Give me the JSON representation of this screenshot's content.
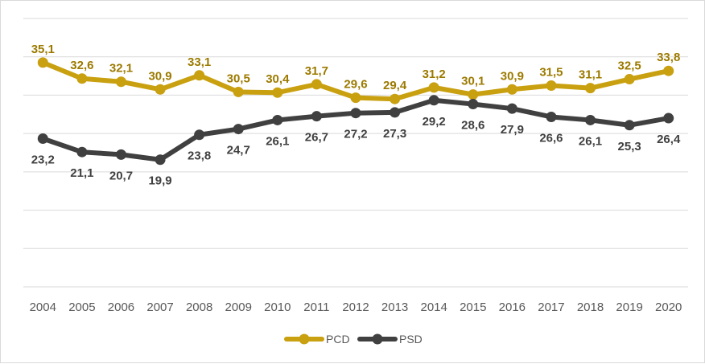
{
  "chart_data": {
    "type": "line",
    "title": "",
    "xlabel": "",
    "ylabel": "",
    "categories": [
      "2004",
      "2005",
      "2006",
      "2007",
      "2008",
      "2009",
      "2010",
      "2011",
      "2012",
      "2013",
      "2014",
      "2015",
      "2016",
      "2017",
      "2018",
      "2019",
      "2020"
    ],
    "ylim": [
      0,
      42
    ],
    "grid": true,
    "legend_position": "bottom",
    "series": [
      {
        "name": "PCD",
        "color": "#C9A00F",
        "label_color": "#9C7A00",
        "values": [
          35.1,
          32.6,
          32.1,
          30.9,
          33.1,
          30.5,
          30.4,
          31.7,
          29.6,
          29.4,
          31.2,
          30.1,
          30.9,
          31.5,
          31.1,
          32.5,
          33.8
        ],
        "labels": [
          "35,1",
          "32,6",
          "32,1",
          "30,9",
          "33,1",
          "30,5",
          "30,4",
          "31,7",
          "29,6",
          "29,4",
          "31,2",
          "30,1",
          "30,9",
          "31,5",
          "31,1",
          "32,5",
          "33,8"
        ]
      },
      {
        "name": "PSD",
        "color": "#404040",
        "label_color": "#404040",
        "values": [
          23.2,
          21.1,
          20.7,
          19.9,
          23.8,
          24.7,
          26.1,
          26.7,
          27.2,
          27.3,
          29.2,
          28.6,
          27.9,
          26.6,
          26.1,
          25.3,
          26.4
        ],
        "labels": [
          "23,2",
          "21,1",
          "20,7",
          "19,9",
          "23,8",
          "24,7",
          "26,1",
          "26,7",
          "27,2",
          "27,3",
          "29,2",
          "28,6",
          "27,9",
          "26,6",
          "26,1",
          "25,3",
          "26,4"
        ]
      }
    ]
  }
}
